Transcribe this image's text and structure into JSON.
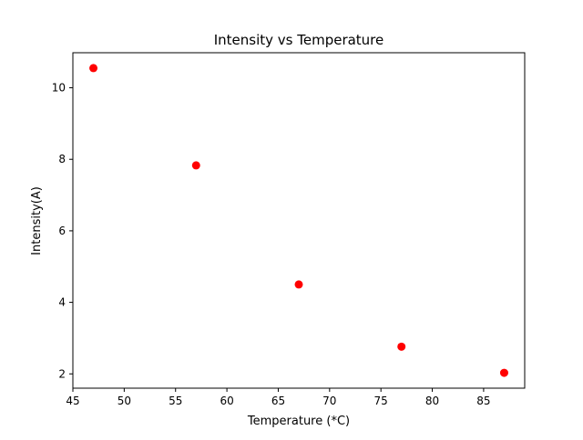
{
  "chart_data": {
    "type": "scatter",
    "title": "Intensity vs Temperature",
    "xlabel": "Temperature (*C)",
    "ylabel": "Intensity(A)",
    "x": [
      47,
      57,
      67,
      77,
      87
    ],
    "y": [
      10.55,
      7.83,
      4.5,
      2.76,
      2.03
    ],
    "xlim": [
      45,
      89
    ],
    "ylim": [
      1.6,
      10.98
    ],
    "xticks": [
      45,
      50,
      55,
      60,
      65,
      70,
      75,
      80,
      85
    ],
    "yticks": [
      2,
      4,
      6,
      8,
      10
    ],
    "grid": false,
    "marker_color": "#ff0000",
    "marker": "circle"
  }
}
